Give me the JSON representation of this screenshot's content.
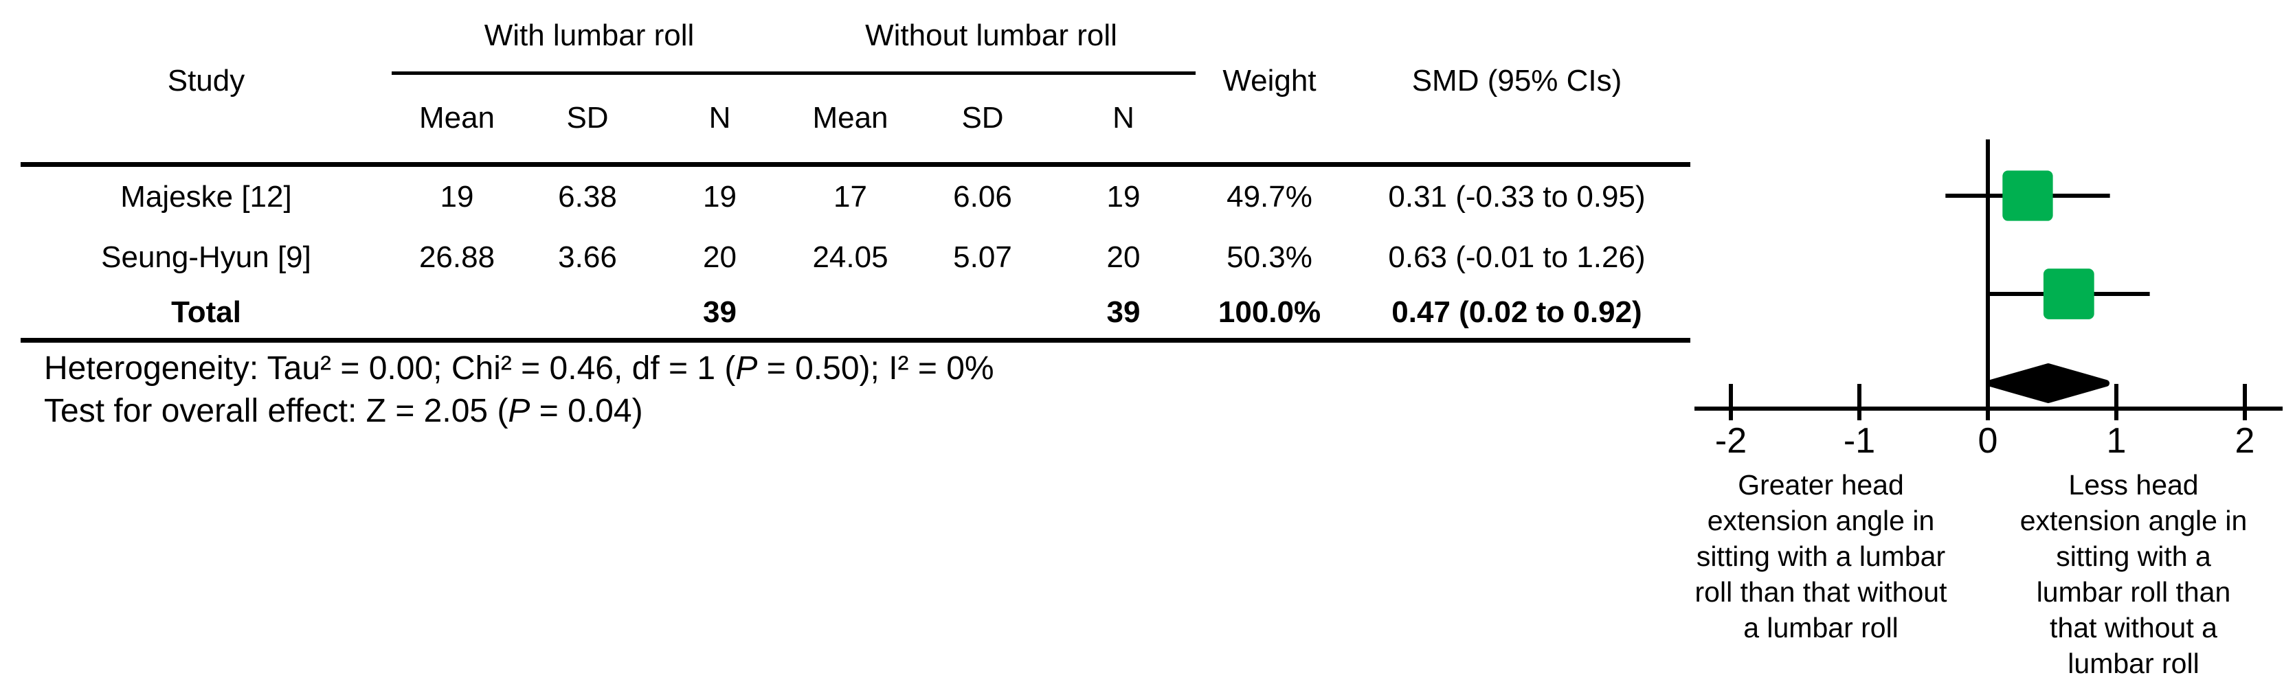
{
  "table": {
    "col_groups": {
      "with": "With lumbar roll",
      "without": "Without lumbar roll"
    },
    "headers": {
      "study": "Study",
      "mean": "Mean",
      "sd": "SD",
      "n": "N",
      "weight": "Weight",
      "smd": "SMD (95% CIs)"
    },
    "rows": [
      {
        "study": "Majeske [12]",
        "mean1": "19",
        "sd1": "6.38",
        "n1": "19",
        "mean2": "17",
        "sd2": "6.06",
        "n2": "19",
        "weight": "49.7%",
        "smd": "0.31 (-0.33 to 0.95)"
      },
      {
        "study": "Seung-Hyun [9]",
        "mean1": "26.88",
        "sd1": "3.66",
        "n1": "20",
        "mean2": "24.05",
        "sd2": "5.07",
        "n2": "20",
        "weight": "50.3%",
        "smd": "0.63 (-0.01 to 1.26)"
      }
    ],
    "total": {
      "study": "Total",
      "n1": "39",
      "n2": "39",
      "weight": "100.0%",
      "smd": "0.47 (0.02 to 0.92)"
    }
  },
  "footnotes": {
    "heterogeneity_prefix": "Heterogeneity: Tau² = 0.00; Chi² = 0.46, df = 1 (",
    "heterogeneity_p": "P",
    "heterogeneity_suffix": " = 0.50); I² = 0%",
    "overall_prefix": "Test for overall effect: Z = 2.05 (",
    "overall_p": "P",
    "overall_suffix": " = 0.04)"
  },
  "plot": {
    "direction_left": "Greater head\nextension angle in\nsitting with a lumbar\nroll than that without\na lumbar roll",
    "direction_right": "Less head\nextension angle in\nsitting with a\nlumbar roll than\nthat without a\nlumbar roll"
  },
  "chart_data": {
    "type": "forest",
    "x_axis": {
      "ticks": [
        -2,
        -1,
        0,
        1,
        2
      ],
      "tick_labels": [
        "-2",
        "-1",
        "0",
        "1",
        "2"
      ],
      "range": [
        -2.3,
        2.3
      ],
      "zero_line": 0
    },
    "studies": [
      {
        "name": "Majeske [12]",
        "smd": 0.31,
        "ci_low": -0.33,
        "ci_high": 0.95,
        "weight_pct": 49.7
      },
      {
        "name": "Seung-Hyun [9]",
        "smd": 0.63,
        "ci_low": -0.01,
        "ci_high": 1.26,
        "weight_pct": 50.3
      }
    ],
    "total": {
      "name": "Total",
      "smd": 0.47,
      "ci_low": 0.02,
      "ci_high": 0.92,
      "weight_pct": 100.0
    },
    "marker_color": "#00B050",
    "diamond_color": "#000000"
  }
}
